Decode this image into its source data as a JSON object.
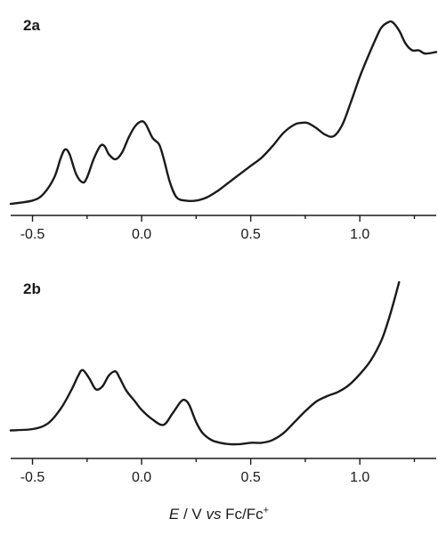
{
  "chart_data": [
    {
      "type": "line",
      "panel_label": "2a",
      "xlim": [
        -0.6,
        1.35
      ],
      "xticks": [
        -0.5,
        0.0,
        0.5,
        1.0
      ],
      "xtick_labels": [
        "-0.5",
        "0.0",
        "0.5",
        "1.0"
      ],
      "y_axis_shown": false,
      "y_units": "arbitrary (relative current)",
      "series": [
        {
          "x": [
            -0.6,
            -0.5,
            -0.45,
            -0.4,
            -0.37,
            -0.35,
            -0.33,
            -0.3,
            -0.27,
            -0.25,
            -0.22,
            -0.19,
            -0.17,
            -0.15,
            -0.12,
            -0.09,
            -0.06,
            -0.03,
            0.0,
            0.02,
            0.05,
            0.08,
            0.1,
            0.13,
            0.16,
            0.2,
            0.25,
            0.3,
            0.35,
            0.4,
            0.45,
            0.5,
            0.55,
            0.6,
            0.65,
            0.7,
            0.73,
            0.76,
            0.8,
            0.84,
            0.88,
            0.92,
            0.96,
            1.0,
            1.04,
            1.08,
            1.1,
            1.13,
            1.15,
            1.18,
            1.21,
            1.24,
            1.27,
            1.3,
            1.35
          ],
          "y": [
            0.0,
            0.02,
            0.06,
            0.16,
            0.28,
            0.33,
            0.3,
            0.18,
            0.13,
            0.16,
            0.27,
            0.35,
            0.35,
            0.3,
            0.27,
            0.31,
            0.4,
            0.47,
            0.5,
            0.48,
            0.4,
            0.36,
            0.28,
            0.13,
            0.04,
            0.02,
            0.02,
            0.04,
            0.08,
            0.13,
            0.18,
            0.23,
            0.28,
            0.35,
            0.43,
            0.48,
            0.49,
            0.49,
            0.46,
            0.42,
            0.41,
            0.48,
            0.62,
            0.77,
            0.9,
            1.02,
            1.07,
            1.1,
            1.1,
            1.05,
            0.97,
            0.93,
            0.93,
            0.91,
            0.92
          ]
        }
      ]
    },
    {
      "type": "line",
      "panel_label": "2b",
      "xlim": [
        -0.6,
        1.35
      ],
      "xticks": [
        -0.5,
        0.0,
        0.5,
        1.0
      ],
      "xtick_labels": [
        "-0.5",
        "0.0",
        "0.5",
        "1.0"
      ],
      "y_axis_shown": false,
      "y_units": "arbitrary (relative current)",
      "series": [
        {
          "x": [
            -0.6,
            -0.5,
            -0.43,
            -0.37,
            -0.32,
            -0.29,
            -0.27,
            -0.24,
            -0.21,
            -0.18,
            -0.15,
            -0.12,
            -0.1,
            -0.07,
            -0.03,
            0.0,
            0.05,
            0.1,
            0.14,
            0.18,
            0.2,
            0.22,
            0.25,
            0.28,
            0.32,
            0.36,
            0.4,
            0.45,
            0.5,
            0.55,
            0.6,
            0.65,
            0.7,
            0.75,
            0.8,
            0.85,
            0.9,
            0.95,
            1.0,
            1.05,
            1.1,
            1.14,
            1.18
          ],
          "y": [
            0.12,
            0.13,
            0.17,
            0.28,
            0.42,
            0.52,
            0.56,
            0.5,
            0.42,
            0.44,
            0.52,
            0.55,
            0.5,
            0.41,
            0.33,
            0.27,
            0.2,
            0.16,
            0.24,
            0.33,
            0.34,
            0.3,
            0.18,
            0.1,
            0.05,
            0.03,
            0.02,
            0.02,
            0.03,
            0.03,
            0.05,
            0.1,
            0.18,
            0.26,
            0.33,
            0.37,
            0.4,
            0.45,
            0.53,
            0.63,
            0.78,
            0.97,
            1.2
          ]
        }
      ]
    }
  ],
  "x_axis_label": {
    "variable": "E",
    "sep1": " / V ",
    "vs": "vs",
    "ref": " Fc/Fc",
    "ref_sup": "+"
  },
  "colors": {
    "line": "#1a1a1a",
    "background": "#ffffff"
  }
}
